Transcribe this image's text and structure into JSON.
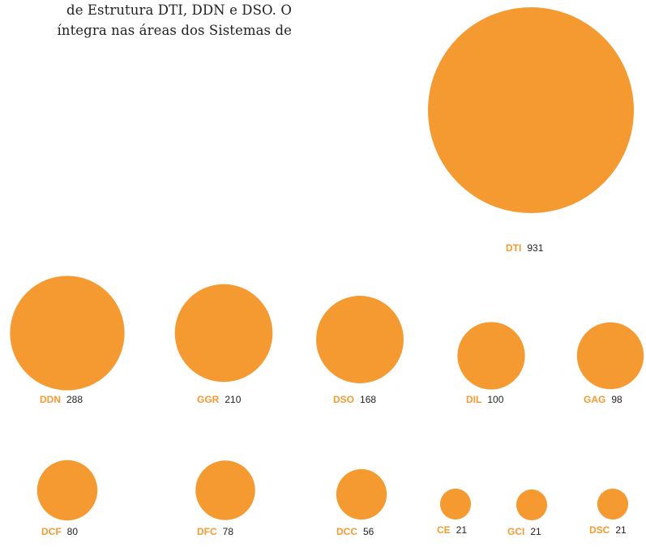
{
  "intro_text": {
    "line1": "de Estrutura DTI, DDN e DSO. O",
    "line2": "íntegra nas áreas dos Sistemas de"
  },
  "colors": {
    "bubble": "#F49A31",
    "code_label": "#F49A31",
    "value_label": "#222222"
  },
  "chart_data": {
    "type": "bubble",
    "categories": [
      "DTI",
      "DDN",
      "GGR",
      "DSO",
      "DIL",
      "GAG",
      "DCF",
      "DFC",
      "DCC",
      "CE",
      "GCI",
      "DSC"
    ],
    "values": [
      931,
      288,
      210,
      168,
      100,
      98,
      80,
      78,
      56,
      21,
      21,
      21
    ]
  }
}
